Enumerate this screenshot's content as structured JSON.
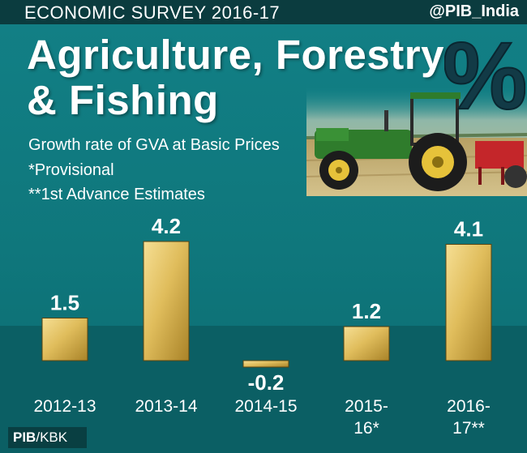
{
  "header": {
    "survey": "ECONOMIC SURVEY 2016-17",
    "handle": "@PIB_India"
  },
  "title_line1": "Agriculture, Forestry",
  "title_line2": "& Fishing",
  "subtitle": "Growth rate of GVA at Basic Prices",
  "notes": [
    "*Provisional",
    "**1st Advance Estimates"
  ],
  "percent_symbol": "%",
  "credit": {
    "org": "PIB",
    "code": "/KBK"
  },
  "colors": {
    "background": "#128086",
    "band": "#0b5f64",
    "bar": "#e0bd5c",
    "text": "#ffffff"
  },
  "chart_data": {
    "type": "bar",
    "categories": [
      [
        "2012-13"
      ],
      [
        "2013-14"
      ],
      [
        "2014-15"
      ],
      [
        "2015-",
        "16*"
      ],
      [
        "2016-",
        "17**"
      ]
    ],
    "values": [
      1.5,
      4.2,
      -0.2,
      1.2,
      4.1
    ],
    "value_labels": [
      "1.5",
      "4.2",
      "-0.2",
      "1.2",
      "4.1"
    ],
    "title": "Agriculture, Forestry & Fishing",
    "subtitle": "Growth rate of GVA at Basic Prices",
    "unit": "%",
    "grid": false
  }
}
